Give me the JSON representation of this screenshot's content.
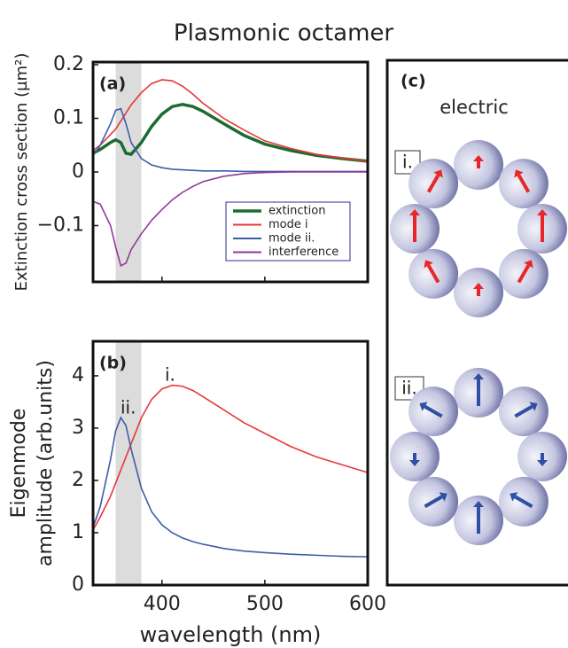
{
  "title": "Plasmonic octamer",
  "chart_data": [
    {
      "type": "line",
      "panel_label": "(a)",
      "ylabel": "Extinction cross section (µm²)",
      "x": [
        333,
        340,
        350,
        355,
        360,
        365,
        370,
        380,
        390,
        400,
        410,
        420,
        430,
        440,
        460,
        480,
        500,
        525,
        550,
        575,
        600
      ],
      "series": [
        {
          "name": "extinction",
          "color": "#1e6b32",
          "values": [
            0.035,
            0.042,
            0.055,
            0.06,
            0.055,
            0.035,
            0.033,
            0.055,
            0.085,
            0.108,
            0.122,
            0.126,
            0.122,
            0.113,
            0.09,
            0.068,
            0.052,
            0.04,
            0.031,
            0.025,
            0.02
          ]
        },
        {
          "name": "mode i",
          "color": "#e8373a",
          "values": [
            0.04,
            0.05,
            0.07,
            0.08,
            0.095,
            0.11,
            0.125,
            0.148,
            0.165,
            0.172,
            0.17,
            0.16,
            0.145,
            0.128,
            0.1,
            0.078,
            0.058,
            0.044,
            0.033,
            0.026,
            0.02
          ]
        },
        {
          "name": "mode ii.",
          "color": "#3f5ca8",
          "values": [
            0.03,
            0.05,
            0.09,
            0.115,
            0.118,
            0.09,
            0.055,
            0.025,
            0.013,
            0.008,
            0.005,
            0.004,
            0.003,
            0.002,
            0.002,
            0.001,
            0.001,
            0.001,
            0.001,
            0.001,
            0.001
          ]
        },
        {
          "name": "interference",
          "color": "#94379a",
          "values": [
            -0.055,
            -0.06,
            -0.1,
            -0.14,
            -0.175,
            -0.17,
            -0.145,
            -0.115,
            -0.09,
            -0.07,
            -0.052,
            -0.038,
            -0.027,
            -0.018,
            -0.008,
            -0.003,
            -0.001,
            0,
            0,
            0,
            0
          ]
        }
      ],
      "xlim": [
        333,
        600
      ],
      "xticks": [
        400,
        500,
        600
      ],
      "show_xtick_labels": false,
      "ylim": [
        -0.205,
        0.205
      ],
      "yticks": [
        {
          "value": 0.2,
          "label": "0.2"
        },
        {
          "value": 0.1,
          "label": "0.1"
        },
        0,
        {
          "value": -0.1,
          "label": "−0.1"
        }
      ],
      "highlight_band": [
        355,
        380
      ],
      "legend": "lower right"
    },
    {
      "type": "line",
      "panel_label": "(b)",
      "ylabel": [
        "Eigenmode",
        "amplitude (arb.units)"
      ],
      "xlabel": "wavelength (nm)",
      "x": [
        333,
        340,
        350,
        355,
        360,
        365,
        370,
        380,
        390,
        400,
        410,
        420,
        430,
        440,
        460,
        480,
        500,
        525,
        550,
        575,
        600
      ],
      "series": [
        {
          "color": "#e8373a",
          "values": [
            1.05,
            1.3,
            1.7,
            1.95,
            2.2,
            2.45,
            2.7,
            3.2,
            3.55,
            3.75,
            3.82,
            3.8,
            3.72,
            3.6,
            3.35,
            3.1,
            2.9,
            2.65,
            2.45,
            2.3,
            2.15
          ]
        },
        {
          "color": "#3f5ca8",
          "values": [
            1.1,
            1.5,
            2.4,
            2.95,
            3.2,
            3.05,
            2.6,
            1.85,
            1.4,
            1.15,
            1.0,
            0.9,
            0.83,
            0.78,
            0.7,
            0.65,
            0.62,
            0.59,
            0.57,
            0.55,
            0.54
          ]
        }
      ],
      "annotations": [
        "i.",
        "ii."
      ],
      "xlim": [
        333,
        600
      ],
      "xticks": [
        400,
        500,
        600
      ],
      "show_xtick_labels": true,
      "ylim": [
        0,
        4.66
      ],
      "yticks": [
        0,
        1,
        2,
        3,
        4
      ],
      "highlight_band": [
        355,
        380
      ]
    }
  ],
  "panel_c": {
    "label": "(c)",
    "title": "electric",
    "modes": [
      "i.",
      "ii."
    ]
  }
}
